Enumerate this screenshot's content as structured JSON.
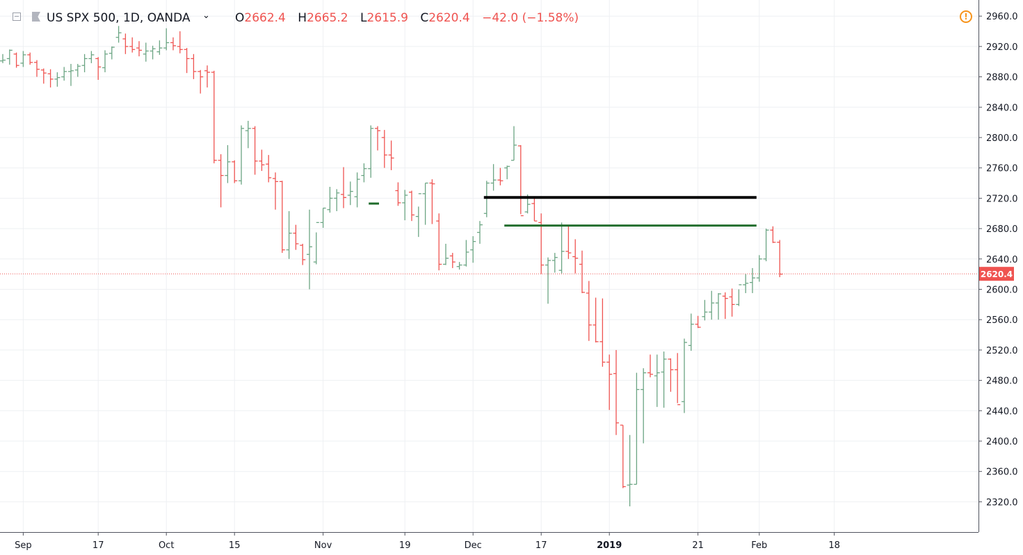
{
  "header": {
    "symbol": "US SPX 500, 1D, OANDA",
    "open_label": "O",
    "open": "2662.4",
    "high_label": "H",
    "high": "2665.2",
    "low_label": "L",
    "low": "2615.9",
    "close_label": "C",
    "close": "2620.4",
    "change": "−42.0 (−1.58%)",
    "icons": [
      "collapse-icon",
      "flag-icon",
      "chevron-down-icon",
      "warning-icon"
    ]
  },
  "colors": {
    "up": "#6ba583",
    "down": "#ef5350",
    "resistance_black": "#000000",
    "resistance_green": "#1e6b2a",
    "last_price": "#ef5350"
  },
  "chart_data": {
    "type": "ohlc",
    "title": "US SPX 500, 1D, OANDA",
    "ylim": [
      2290,
      2980
    ],
    "y_ticks": [
      "2960.0",
      "2920.0",
      "2880.0",
      "2840.0",
      "2800.0",
      "2760.0",
      "2720.0",
      "2680.0",
      "2640.0",
      "2600.0",
      "2560.0",
      "2520.0",
      "2480.0",
      "2440.0",
      "2400.0",
      "2360.0",
      "2320.0"
    ],
    "x_ticks": [
      {
        "label": "Sep",
        "bold": false,
        "bar": 3
      },
      {
        "label": "17",
        "bold": false,
        "bar": 14
      },
      {
        "label": "Oct",
        "bold": false,
        "bar": 24
      },
      {
        "label": "15",
        "bold": false,
        "bar": 34
      },
      {
        "label": "Nov",
        "bold": false,
        "bar": 47
      },
      {
        "label": "19",
        "bold": false,
        "bar": 59
      },
      {
        "label": "Dec",
        "bold": false,
        "bar": 69
      },
      {
        "label": "17",
        "bold": false,
        "bar": 79
      },
      {
        "label": "2019",
        "bold": true,
        "bar": 89
      },
      {
        "label": "21",
        "bold": false,
        "bar": 102
      },
      {
        "label": "Feb",
        "bold": false,
        "bar": 111
      },
      {
        "label": "18",
        "bold": false,
        "bar": 122
      }
    ],
    "last_price": "2620.4",
    "horizontal_lines": [
      {
        "y": 2721,
        "from_bar": 71,
        "to_bar": 111,
        "color": "#000000"
      },
      {
        "y": 2684,
        "from_bar": 74,
        "to_bar": 111,
        "color": "#1e6b2a"
      }
    ],
    "marker": {
      "y": 2713,
      "from_bar": 54,
      "to_bar": 55,
      "color": "#1e6b2a"
    },
    "bars": [
      [
        2901,
        2910,
        2898,
        2902
      ],
      [
        2904,
        2916,
        2896,
        2915
      ],
      [
        2910,
        2912,
        2892,
        2895
      ],
      [
        2898,
        2914,
        2893,
        2909
      ],
      [
        2909,
        2912,
        2896,
        2899
      ],
      [
        2899,
        2902,
        2880,
        2890
      ],
      [
        2889,
        2891,
        2871,
        2885
      ],
      [
        2884,
        2890,
        2866,
        2877
      ],
      [
        2877,
        2886,
        2867,
        2879
      ],
      [
        2880,
        2893,
        2875,
        2887
      ],
      [
        2887,
        2897,
        2868,
        2888
      ],
      [
        2889,
        2897,
        2880,
        2894
      ],
      [
        2895,
        2910,
        2886,
        2904
      ],
      [
        2904,
        2914,
        2898,
        2909
      ],
      [
        2904,
        2906,
        2876,
        2893
      ],
      [
        2892,
        2915,
        2886,
        2910
      ],
      [
        2911,
        2920,
        2903,
        2919
      ],
      [
        2932,
        2947,
        2925,
        2938
      ],
      [
        2930,
        2937,
        2910,
        2920
      ],
      [
        2920,
        2932,
        2912,
        2916
      ],
      [
        2918,
        2927,
        2907,
        2915
      ],
      [
        2910,
        2925,
        2900,
        2914
      ],
      [
        2914,
        2921,
        2903,
        2917
      ],
      [
        2913,
        2928,
        2909,
        2918
      ],
      [
        2918,
        2944,
        2915,
        2925
      ],
      [
        2925,
        2932,
        2915,
        2921
      ],
      [
        2920,
        2940,
        2911,
        2916
      ],
      [
        2916,
        2918,
        2885,
        2904
      ],
      [
        2904,
        2910,
        2877,
        2887
      ],
      [
        2887,
        2889,
        2858,
        2880
      ],
      [
        2888,
        2895,
        2866,
        2886
      ],
      [
        2886,
        2888,
        2766,
        2770
      ],
      [
        2770,
        2778,
        2708,
        2750
      ],
      [
        2750,
        2790,
        2740,
        2768
      ],
      [
        2768,
        2770,
        2740,
        2743
      ],
      [
        2743,
        2816,
        2738,
        2812
      ],
      [
        2809,
        2822,
        2786,
        2812
      ],
      [
        2812,
        2815,
        2751,
        2769
      ],
      [
        2769,
        2784,
        2756,
        2764
      ],
      [
        2765,
        2777,
        2741,
        2747
      ],
      [
        2746,
        2754,
        2705,
        2742
      ],
      [
        2742,
        2743,
        2648,
        2652
      ],
      [
        2652,
        2703,
        2640,
        2674
      ],
      [
        2674,
        2685,
        2652,
        2660
      ],
      [
        2658,
        2660,
        2632,
        2639
      ],
      [
        2646,
        2705,
        2600,
        2656
      ],
      [
        2636,
        2675,
        2633,
        2688
      ],
      [
        2688,
        2707,
        2681,
        2707
      ],
      [
        2705,
        2735,
        2701,
        2720
      ],
      [
        2720,
        2732,
        2703,
        2727
      ],
      [
        2725,
        2761,
        2707,
        2721
      ],
      [
        2724,
        2742,
        2711,
        2729
      ],
      [
        2722,
        2754,
        2708,
        2745
      ],
      [
        2750,
        2766,
        2741,
        2759
      ],
      [
        2759,
        2816,
        2747,
        2812
      ],
      [
        2812,
        2815,
        2783,
        2809
      ],
      [
        2800,
        2810,
        2760,
        2777
      ],
      [
        2777,
        2796,
        2757,
        2773
      ],
      [
        2730,
        2741,
        2710,
        2714
      ],
      [
        2714,
        2731,
        2691,
        2724
      ],
      [
        2728,
        2730,
        2690,
        2698
      ],
      [
        2696,
        2709,
        2669,
        2726
      ],
      [
        2726,
        2740,
        2685,
        2740
      ],
      [
        2740,
        2745,
        2686,
        2739
      ],
      [
        2690,
        2700,
        2625,
        2633
      ],
      [
        2633,
        2660,
        2632,
        2641
      ],
      [
        2644,
        2648,
        2628,
        2636
      ],
      [
        2630,
        2636,
        2626,
        2632
      ],
      [
        2632,
        2665,
        2630,
        2649
      ],
      [
        2652,
        2670,
        2635,
        2663
      ],
      [
        2675,
        2690,
        2660,
        2685
      ],
      [
        2700,
        2743,
        2695,
        2740
      ],
      [
        2740,
        2765,
        2730,
        2744
      ],
      [
        2744,
        2760,
        2737,
        2743
      ],
      [
        2760,
        2763,
        2745,
        2762
      ],
      [
        2770,
        2815,
        2770,
        2790
      ],
      [
        2789,
        2790,
        2699,
        2697
      ],
      [
        2702,
        2725,
        2700,
        2712
      ],
      [
        2713,
        2720,
        2690,
        2690
      ],
      [
        2688,
        2700,
        2620,
        2632
      ],
      [
        2632,
        2642,
        2581,
        2638
      ],
      [
        2638,
        2648,
        2622,
        2642
      ],
      [
        2625,
        2688,
        2621,
        2650
      ],
      [
        2650,
        2685,
        2640,
        2648
      ],
      [
        2643,
        2666,
        2621,
        2641
      ],
      [
        2633,
        2651,
        2595,
        2596
      ],
      [
        2595,
        2611,
        2532,
        2553
      ],
      [
        2553,
        2589,
        2530,
        2531
      ],
      [
        2531,
        2588,
        2498,
        2504
      ],
      [
        2504,
        2514,
        2441,
        2488
      ],
      [
        2489,
        2520,
        2408,
        2424
      ],
      [
        2421,
        2421,
        2338,
        2340
      ],
      [
        2342,
        2408,
        2314,
        2343
      ],
      [
        2343,
        2490,
        2343,
        2468
      ],
      [
        2468,
        2496,
        2397,
        2490
      ],
      [
        2490,
        2514,
        2484,
        2488
      ],
      [
        2486,
        2514,
        2445,
        2490
      ],
      [
        2491,
        2518,
        2444,
        2508
      ],
      [
        2508,
        2509,
        2465,
        2494
      ],
      [
        2494,
        2516,
        2450,
        2448
      ],
      [
        2452,
        2535,
        2437,
        2530
      ],
      [
        2526,
        2568,
        2519,
        2554
      ],
      [
        2554,
        2565,
        2549,
        2550
      ],
      [
        2564,
        2586,
        2559,
        2570
      ],
      [
        2570,
        2598,
        2560,
        2582
      ],
      [
        2582,
        2595,
        2560,
        2594
      ],
      [
        2591,
        2596,
        2561,
        2588
      ],
      [
        2590,
        2601,
        2564,
        2580
      ],
      [
        2580,
        2600,
        2578,
        2606
      ],
      [
        2606,
        2620,
        2595,
        2608
      ],
      [
        2609,
        2628,
        2595,
        2615
      ],
      [
        2615,
        2645,
        2610,
        2640
      ],
      [
        2640,
        2680,
        2637,
        2678
      ],
      [
        2678,
        2683,
        2661,
        2662
      ],
      [
        2662,
        2665,
        2616,
        2620
      ]
    ]
  }
}
